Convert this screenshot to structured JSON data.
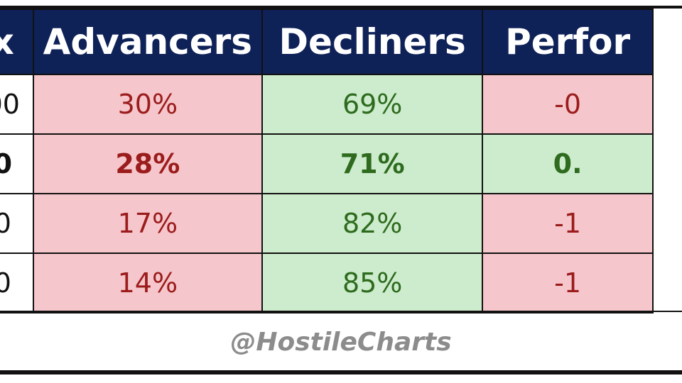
{
  "chart_data": {
    "type": "table",
    "columns": [
      "x",
      "Advancers",
      "Decliners",
      "Perfor"
    ],
    "rows": [
      {
        "index": "00",
        "advancers": "30%",
        "decliners": "69%",
        "performance": "-0",
        "bold": false
      },
      {
        "index": "0",
        "advancers": "28%",
        "decliners": "71%",
        "performance": "0.",
        "bold": true
      },
      {
        "index": "0",
        "advancers": "17%",
        "decliners": "82%",
        "performance": "-1",
        "bold": false
      },
      {
        "index": "0",
        "advancers": "14%",
        "decliners": "85%",
        "performance": "-1",
        "bold": false
      }
    ],
    "colors": {
      "header_bg": "#0f2258",
      "header_text": "#ffffff",
      "negative_cell_bg": "#f5c6cb",
      "negative_text": "#9b1c1c",
      "positive_cell_bg": "#cdeccd",
      "positive_text": "#2e6b1e"
    }
  },
  "watermark": "@HostileCharts"
}
